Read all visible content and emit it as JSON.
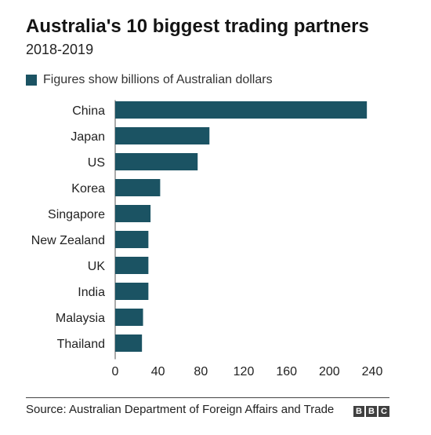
{
  "chart_data": {
    "type": "bar",
    "orientation": "horizontal",
    "title": "Australia's 10 biggest trading partners",
    "subtitle": "2018-2019",
    "legend": "Figures show billions of Australian dollars",
    "categories": [
      "China",
      "Japan",
      "US",
      "Korea",
      "Singapore",
      "New Zealand",
      "UK",
      "India",
      "Malaysia",
      "Thailand"
    ],
    "values": [
      235,
      88,
      77,
      42,
      33,
      31,
      31,
      31,
      26,
      25
    ],
    "xticks": [
      "0",
      "40",
      "80",
      "120",
      "160",
      "200",
      "240"
    ],
    "xlim": [
      0,
      240
    ],
    "grid": false,
    "bar_color": "#1b5363"
  },
  "source": "Source: Australian Department of Foreign Affairs and Trade",
  "logo": [
    "B",
    "B",
    "C"
  ]
}
